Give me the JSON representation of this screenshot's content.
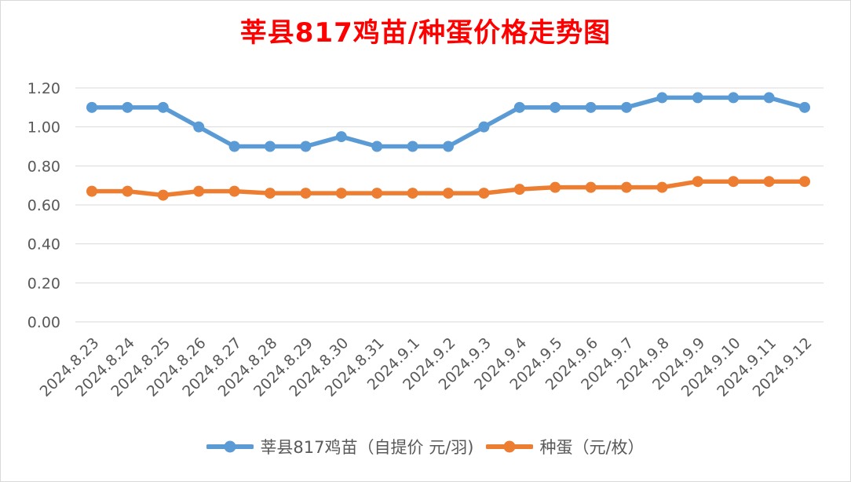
{
  "chart_data": {
    "type": "line",
    "title": "莘县817鸡苗/种蛋价格走势图",
    "categories": [
      "2024.8.23",
      "2024.8.24",
      "2024.8.25",
      "2024.8.26",
      "2024.8.27",
      "2024.8.28",
      "2024.8.29",
      "2024.8.30",
      "2024.8.31",
      "2024.9.1",
      "2024.9.2",
      "2024.9.3",
      "2024.9.4",
      "2024.9.5",
      "2024.9.6",
      "2024.9.7",
      "2024.9.8",
      "2024.9.9",
      "2024.9.10",
      "2024.9.11",
      "2024.9.12"
    ],
    "series": [
      {
        "name": "莘县817鸡苗（自提价 元/羽)",
        "color": "#5b9bd5",
        "values": [
          1.1,
          1.1,
          1.1,
          1.0,
          0.9,
          0.9,
          0.9,
          0.95,
          0.9,
          0.9,
          0.9,
          1.0,
          1.1,
          1.1,
          1.1,
          1.1,
          1.15,
          1.15,
          1.15,
          1.15,
          1.1
        ]
      },
      {
        "name": "种蛋（元/枚）",
        "color": "#ed7d31",
        "values": [
          0.67,
          0.67,
          0.65,
          0.67,
          0.67,
          0.66,
          0.66,
          0.66,
          0.66,
          0.66,
          0.66,
          0.66,
          0.68,
          0.69,
          0.69,
          0.69,
          0.69,
          0.72,
          0.72,
          0.72,
          0.72
        ]
      }
    ],
    "yticks": [
      "0.00",
      "0.20",
      "0.40",
      "0.60",
      "0.80",
      "1.00",
      "1.20"
    ],
    "ylim": [
      0,
      1.2
    ],
    "grid": true,
    "legend_position": "bottom"
  }
}
